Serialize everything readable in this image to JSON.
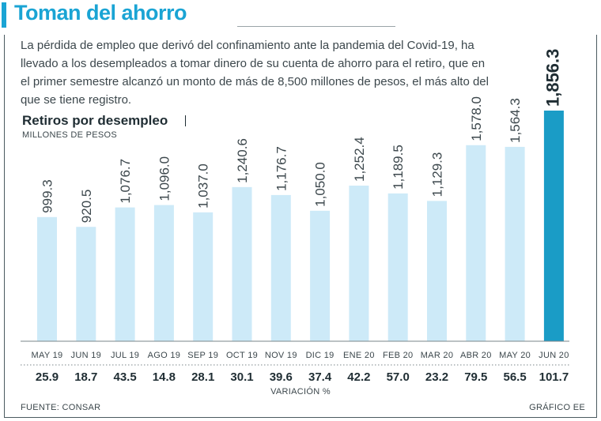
{
  "header": {
    "title": "Toman del ahorro",
    "intro": "La pérdida de empleo que derivó del confinamiento ante la pandemia del Covid-19, ha llevado a los desempleados a tomar dinero de su cuenta de ahorro para el retiro, que en el primer semestre alcanzó un monto de más de 8,500 millones de pesos, el más alto del que se tiene registro."
  },
  "footer": {
    "variation_label": "VARIACIÓN %",
    "source": "FUENTE: CONSAR",
    "credit": "GRÁFICO EE"
  },
  "colors": {
    "accent": "#1aa4d4",
    "bar": "#cdeaf8",
    "highlight_bar": "#1a9cc6",
    "text": "#1f2d33"
  },
  "chart_data": {
    "type": "bar",
    "title": "Retiros por desempleo",
    "subtitle": "MILLONES DE PESOS",
    "categories": [
      "MAY 19",
      "JUN 19",
      "JUL 19",
      "AGO 19",
      "SEP 19",
      "OCT 19",
      "NOV 19",
      "DIC 19",
      "ENE 20",
      "FEB 20",
      "MAR 20",
      "ABR 20",
      "MAY 20",
      "JUN 20"
    ],
    "values": [
      999.3,
      920.5,
      1076.7,
      1096.0,
      1037.0,
      1240.6,
      1176.7,
      1050.0,
      1252.4,
      1189.5,
      1129.3,
      1578.0,
      1564.3,
      1856.3
    ],
    "value_labels": [
      "999.3",
      "920.5",
      "1,076.7",
      "1,096.0",
      "1,037.0",
      "1,240.6",
      "1,176.7",
      "1,050.0",
      "1,252.4",
      "1,189.5",
      "1,129.3",
      "1,578.0",
      "1,564.3",
      "1,856.3"
    ],
    "variation": [
      "25.9",
      "18.7",
      "43.5",
      "14.8",
      "28.1",
      "30.1",
      "39.6",
      "37.4",
      "42.2",
      "57.0",
      "23.2",
      "79.5",
      "56.5",
      "101.7"
    ],
    "highlight_index": 13,
    "ylim": [
      0,
      1856.3
    ],
    "grid": false,
    "legend": "none"
  }
}
